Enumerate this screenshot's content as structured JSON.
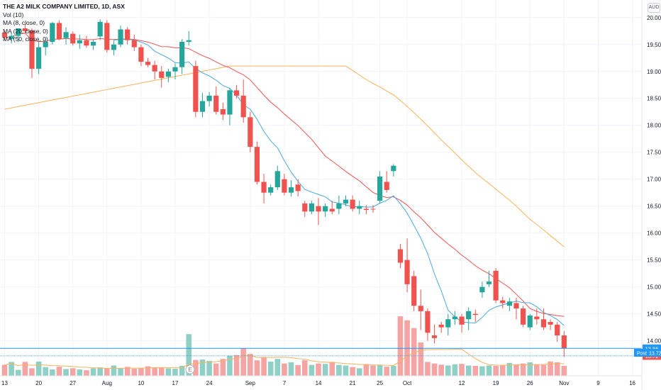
{
  "legend": {
    "title": "THE A2 MILK COMPANY LIMITED, 1D, ASX",
    "vol": "Vol (10)",
    "ma8": "MA (8, close, 0)",
    "ma20": "MA (20, close, 0)",
    "ma50": "MA (50, close, 0)"
  },
  "currency": "AUD",
  "earnings_marker": "E",
  "colors": {
    "up": "#26a69a",
    "down": "#ef5350",
    "ma8": "#4aa8e0",
    "ma20": "#ef5350",
    "ma50": "#f8b35b",
    "vol_up": "#8fd0c6",
    "vol_down": "#f5a4a4",
    "price_line": "#2196f3"
  },
  "chart_data": {
    "type": "candlestick",
    "ylim": [
      13.35,
      20.3
    ],
    "yticks": [
      "14.00",
      "14.50",
      "15.00",
      "15.50",
      "16.00",
      "16.50",
      "17.00",
      "17.50",
      "18.00",
      "18.50",
      "19.00",
      "19.50",
      "20.00"
    ],
    "xticks": [
      {
        "label": "13",
        "i": 0
      },
      {
        "label": "20",
        "i": 5
      },
      {
        "label": "27",
        "i": 10
      },
      {
        "label": "Aug",
        "i": 15
      },
      {
        "label": "10",
        "i": 20
      },
      {
        "label": "17",
        "i": 25
      },
      {
        "label": "24",
        "i": 30
      },
      {
        "label": "Sep",
        "i": 36
      },
      {
        "label": "7",
        "i": 41
      },
      {
        "label": "14",
        "i": 46
      },
      {
        "label": "21",
        "i": 51
      },
      {
        "label": "25",
        "i": 55
      },
      {
        "label": "Oct",
        "i": 59
      },
      {
        "label": "12",
        "i": 67
      },
      {
        "label": "19",
        "i": 72
      },
      {
        "label": "26",
        "i": 77
      },
      {
        "label": "Nov",
        "i": 82
      },
      {
        "label": "9",
        "i": 87
      },
      {
        "label": "16",
        "i": 92
      }
    ],
    "candles": [
      [
        19.72,
        19.76,
        19.58,
        19.63
      ],
      [
        19.6,
        19.72,
        19.52,
        19.66
      ],
      [
        19.66,
        19.78,
        19.55,
        19.8
      ],
      [
        19.8,
        19.88,
        19.7,
        19.75
      ],
      [
        19.76,
        19.8,
        18.88,
        19.05
      ],
      [
        19.05,
        19.55,
        18.95,
        19.45
      ],
      [
        19.45,
        19.62,
        19.3,
        19.55
      ],
      [
        19.55,
        19.92,
        19.5,
        19.9
      ],
      [
        19.9,
        19.95,
        19.58,
        19.6
      ],
      [
        19.62,
        19.82,
        19.5,
        19.73
      ],
      [
        19.7,
        19.74,
        19.48,
        19.52
      ],
      [
        19.52,
        19.68,
        19.42,
        19.58
      ],
      [
        19.58,
        19.66,
        19.44,
        19.48
      ],
      [
        19.48,
        19.6,
        19.4,
        19.55
      ],
      [
        19.65,
        19.97,
        19.58,
        19.92
      ],
      [
        19.9,
        19.95,
        19.35,
        19.4
      ],
      [
        19.4,
        19.58,
        19.3,
        19.5
      ],
      [
        19.5,
        19.85,
        19.45,
        19.78
      ],
      [
        19.78,
        19.82,
        19.5,
        19.58
      ],
      [
        19.58,
        19.68,
        19.38,
        19.45
      ],
      [
        19.45,
        19.5,
        19.1,
        19.18
      ],
      [
        19.18,
        19.25,
        19.08,
        19.12
      ],
      [
        19.12,
        19.2,
        18.85,
        19.0
      ],
      [
        19.0,
        19.1,
        18.7,
        18.88
      ],
      [
        18.9,
        19.05,
        18.8,
        19.0
      ],
      [
        19.0,
        19.15,
        18.85,
        19.08
      ],
      [
        19.08,
        19.6,
        18.95,
        19.55
      ],
      [
        19.55,
        19.75,
        19.48,
        19.58
      ],
      [
        19.1,
        19.2,
        18.15,
        18.25
      ],
      [
        18.25,
        18.6,
        18.15,
        18.45
      ],
      [
        18.45,
        18.62,
        18.35,
        18.55
      ],
      [
        18.55,
        18.72,
        18.2,
        18.25
      ],
      [
        18.3,
        18.42,
        18.1,
        18.2
      ],
      [
        18.2,
        18.7,
        18.0,
        18.65
      ],
      [
        18.65,
        18.75,
        18.5,
        18.55
      ],
      [
        18.55,
        18.85,
        18.05,
        18.15
      ],
      [
        18.15,
        18.25,
        17.5,
        17.6
      ],
      [
        17.6,
        17.7,
        16.9,
        16.95
      ],
      [
        16.95,
        17.1,
        16.55,
        16.75
      ],
      [
        16.75,
        16.9,
        16.7,
        16.85
      ],
      [
        16.85,
        17.25,
        16.8,
        17.15
      ],
      [
        17.0,
        17.1,
        16.7,
        16.75
      ],
      [
        16.75,
        16.98,
        16.68,
        16.85
      ],
      [
        16.9,
        17.0,
        16.68,
        16.78
      ],
      [
        16.55,
        16.6,
        16.3,
        16.4
      ],
      [
        16.4,
        16.6,
        16.35,
        16.55
      ],
      [
        16.5,
        16.65,
        16.15,
        16.4
      ],
      [
        16.4,
        16.55,
        16.3,
        16.5
      ],
      [
        16.45,
        16.6,
        16.35,
        16.4
      ],
      [
        16.45,
        16.7,
        16.35,
        16.55
      ],
      [
        16.55,
        16.7,
        16.5,
        16.62
      ],
      [
        16.62,
        16.7,
        16.4,
        16.45
      ],
      [
        16.45,
        16.6,
        16.35,
        16.5
      ],
      [
        16.45,
        16.52,
        16.35,
        16.43
      ],
      [
        16.45,
        16.52,
        16.38,
        16.44
      ],
      [
        16.6,
        17.15,
        16.55,
        17.05
      ],
      [
        16.95,
        17.15,
        16.75,
        16.8
      ],
      [
        17.15,
        17.28,
        17.05,
        17.25
      ],
      [
        15.7,
        15.8,
        15.35,
        15.45
      ],
      [
        15.5,
        15.9,
        14.9,
        15.05
      ],
      [
        15.2,
        15.3,
        14.55,
        14.65
      ],
      [
        14.65,
        14.95,
        14.2,
        14.55
      ],
      [
        14.55,
        14.6,
        14.0,
        14.15
      ],
      [
        14.1,
        14.3,
        13.95,
        14.05
      ],
      [
        14.3,
        14.35,
        14.15,
        14.25
      ],
      [
        14.25,
        14.5,
        14.1,
        14.4
      ],
      [
        14.4,
        14.55,
        14.3,
        14.45
      ],
      [
        14.45,
        14.5,
        14.15,
        14.3
      ],
      [
        14.4,
        14.62,
        14.2,
        14.55
      ],
      [
        14.5,
        14.58,
        14.35,
        14.48
      ],
      [
        14.9,
        15.1,
        14.8,
        15.0
      ],
      [
        15.05,
        15.3,
        15.0,
        15.1
      ],
      [
        15.3,
        15.35,
        14.7,
        14.75
      ],
      [
        14.75,
        14.82,
        14.6,
        14.7
      ],
      [
        14.65,
        14.8,
        14.55,
        14.73
      ],
      [
        14.7,
        14.8,
        14.4,
        14.6
      ],
      [
        14.6,
        14.65,
        14.25,
        14.3
      ],
      [
        14.25,
        14.5,
        14.2,
        14.47
      ],
      [
        14.45,
        14.6,
        14.3,
        14.4
      ],
      [
        14.4,
        14.6,
        14.2,
        14.25
      ],
      [
        14.35,
        14.4,
        14.2,
        14.3
      ],
      [
        14.3,
        14.35,
        13.98,
        14.1
      ],
      [
        14.1,
        14.18,
        13.7,
        13.86
      ]
    ],
    "volumes": [
      0.55,
      0.7,
      0.3,
      0.7,
      0.38,
      0.72,
      0.44,
      0.32,
      0.46,
      0.34,
      0.38,
      0.32,
      0.28,
      0.38,
      0.42,
      0.38,
      0.52,
      0.38,
      0.45,
      0.36,
      0.38,
      0.48,
      0.4,
      0.42,
      0.38,
      0.36,
      0.5,
      2.1,
      0.8,
      0.82,
      0.75,
      0.62,
      0.85,
      1.02,
      1.05,
      1.4,
      1.1,
      0.78,
      0.92,
      0.72,
      0.85,
      0.62,
      0.68,
      0.54,
      0.78,
      0.55,
      0.62,
      0.6,
      0.7,
      0.55,
      0.52,
      0.44,
      0.38,
      0.58,
      0.52,
      0.54,
      0.46,
      0.5,
      3.0,
      2.8,
      2.4,
      1.68,
      0.7,
      0.62,
      0.56,
      0.52,
      0.58,
      0.6,
      0.52,
      0.5,
      0.48,
      0.52,
      0.5,
      0.54,
      0.65,
      0.58,
      0.62,
      0.68,
      0.58,
      0.55,
      0.72,
      0.68,
      0.5
    ],
    "current_price": "13.86",
    "post_price": "13.72",
    "post_label": "Post"
  }
}
